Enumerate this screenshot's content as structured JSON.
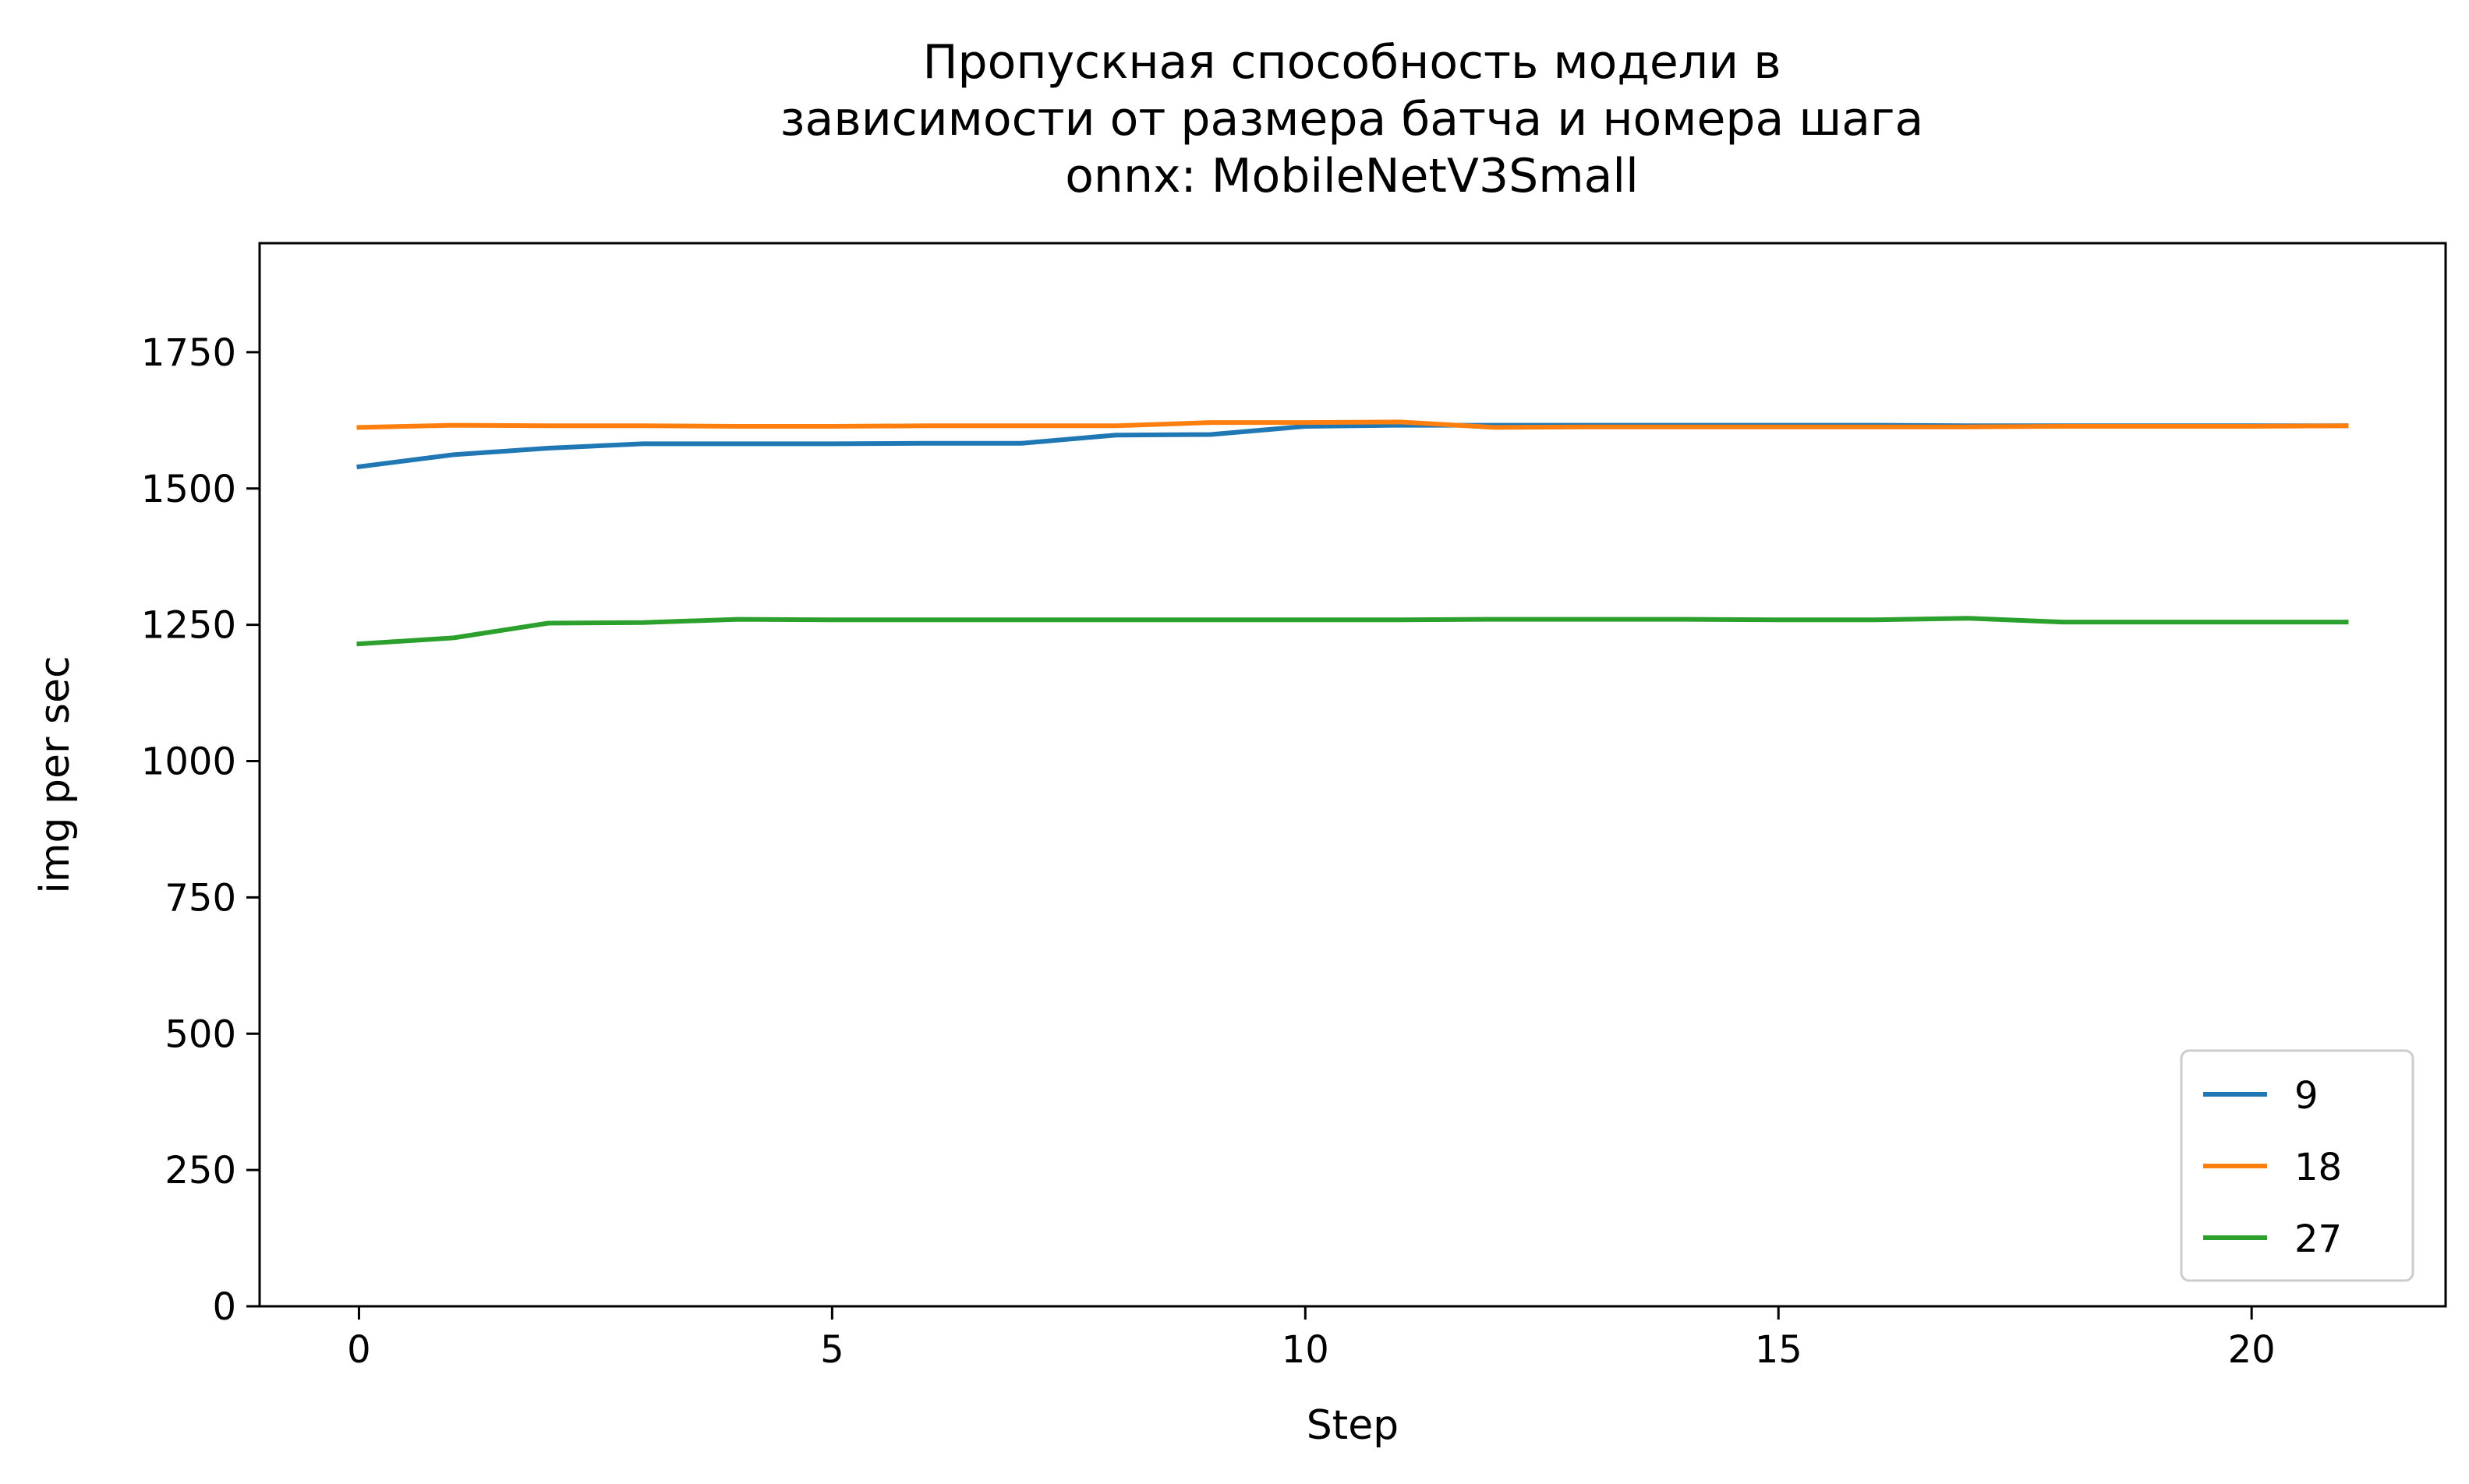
{
  "chart_data": {
    "type": "line",
    "title": [
      "Пропускная способность модели в",
      "зависимости от размера батча и номера шага",
      "onnx:  MobileNetV3Small"
    ],
    "xlabel": "Step",
    "ylabel": "img per sec",
    "xlim": [
      -1.05,
      22.05
    ],
    "ylim": [
      0,
      1950
    ],
    "xticks": [
      0,
      5,
      10,
      15,
      20
    ],
    "yticks": [
      0,
      250,
      500,
      750,
      1000,
      1250,
      1500,
      1750
    ],
    "grid": false,
    "legend_position": "bottom-right",
    "x": [
      0,
      1,
      2,
      3,
      4,
      5,
      6,
      7,
      8,
      9,
      10,
      11,
      12,
      13,
      14,
      15,
      16,
      17,
      18,
      19,
      20,
      21
    ],
    "series": [
      {
        "name": "9",
        "color": "#1f77b4",
        "values": [
          1540,
          1562,
          1574,
          1582,
          1582,
          1582,
          1583,
          1583,
          1598,
          1599,
          1614,
          1616,
          1616,
          1616,
          1616,
          1616,
          1616,
          1615,
          1615,
          1615,
          1615,
          1615
        ]
      },
      {
        "name": "18",
        "color": "#ff7f0e",
        "values": [
          1612,
          1616,
          1615,
          1615,
          1614,
          1614,
          1615,
          1615,
          1615,
          1621,
          1621,
          1622,
          1612,
          1613,
          1613,
          1613,
          1613,
          1613,
          1614,
          1614,
          1614,
          1615
        ]
      },
      {
        "name": "27",
        "color": "#2ca02c",
        "values": [
          1215,
          1226,
          1253,
          1254,
          1260,
          1259,
          1259,
          1259,
          1259,
          1259,
          1259,
          1259,
          1260,
          1260,
          1260,
          1259,
          1259,
          1262,
          1255,
          1255,
          1255,
          1255
        ]
      }
    ]
  }
}
